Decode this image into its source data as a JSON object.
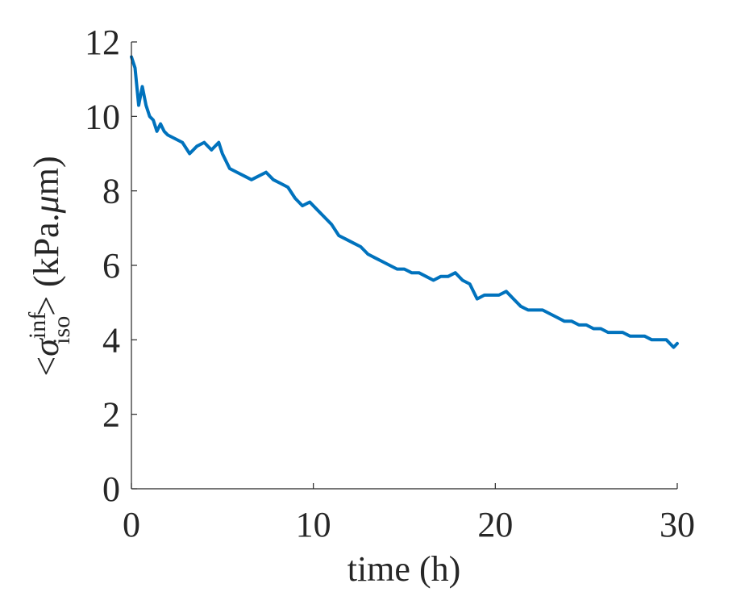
{
  "chart_data": {
    "type": "line",
    "title": "",
    "xlabel": "time (h)",
    "ylabel_parts": {
      "left": "<",
      "symbol": "σ",
      "superscript": "inf",
      "subscript": "iso",
      "right": ">",
      "unit": " (kPa.",
      "unit_mu": "μ",
      "unit_end": "m)"
    },
    "xlim": [
      0,
      30
    ],
    "ylim": [
      0,
      12
    ],
    "xticks": [
      0,
      10,
      20,
      30
    ],
    "yticks": [
      0,
      2,
      4,
      6,
      8,
      10,
      12
    ],
    "xtick_labels": [
      "0",
      "10",
      "20",
      "30"
    ],
    "ytick_labels": [
      "0",
      "2",
      "4",
      "6",
      "8",
      "10",
      "12"
    ],
    "grid": false,
    "series": [
      {
        "color": "#0072BD",
        "x": [
          0,
          0.2,
          0.4,
          0.6,
          0.8,
          1.0,
          1.2,
          1.4,
          1.6,
          1.8,
          2.0,
          2.4,
          2.8,
          3.2,
          3.6,
          4.0,
          4.4,
          4.8,
          5.0,
          5.4,
          5.8,
          6.2,
          6.6,
          7.0,
          7.4,
          7.8,
          8.2,
          8.6,
          9.0,
          9.4,
          9.8,
          10.2,
          10.6,
          11.0,
          11.4,
          11.8,
          12.2,
          12.6,
          13.0,
          13.4,
          13.8,
          14.2,
          14.6,
          15.0,
          15.4,
          15.8,
          16.2,
          16.6,
          17.0,
          17.4,
          17.8,
          18.2,
          18.6,
          19.0,
          19.4,
          19.8,
          20.2,
          20.6,
          21.0,
          21.4,
          21.8,
          22.2,
          22.6,
          23.0,
          23.4,
          23.8,
          24.2,
          24.6,
          25.0,
          25.4,
          25.8,
          26.2,
          26.6,
          27.0,
          27.4,
          27.8,
          28.2,
          28.6,
          29.0,
          29.4,
          29.8,
          30.0
        ],
        "values": [
          11.6,
          11.3,
          10.3,
          10.8,
          10.3,
          10.0,
          9.9,
          9.6,
          9.8,
          9.6,
          9.5,
          9.4,
          9.3,
          9.0,
          9.2,
          9.3,
          9.1,
          9.3,
          9.0,
          8.6,
          8.5,
          8.4,
          8.3,
          8.4,
          8.5,
          8.3,
          8.2,
          8.1,
          7.8,
          7.6,
          7.7,
          7.5,
          7.3,
          7.1,
          6.8,
          6.7,
          6.6,
          6.5,
          6.3,
          6.2,
          6.1,
          6.0,
          5.9,
          5.9,
          5.8,
          5.8,
          5.7,
          5.6,
          5.7,
          5.7,
          5.8,
          5.6,
          5.5,
          5.1,
          5.2,
          5.2,
          5.2,
          5.3,
          5.1,
          4.9,
          4.8,
          4.8,
          4.8,
          4.7,
          4.6,
          4.5,
          4.5,
          4.4,
          4.4,
          4.3,
          4.3,
          4.2,
          4.2,
          4.2,
          4.1,
          4.1,
          4.1,
          4.0,
          4.0,
          4.0,
          3.8,
          3.9
        ]
      }
    ]
  }
}
